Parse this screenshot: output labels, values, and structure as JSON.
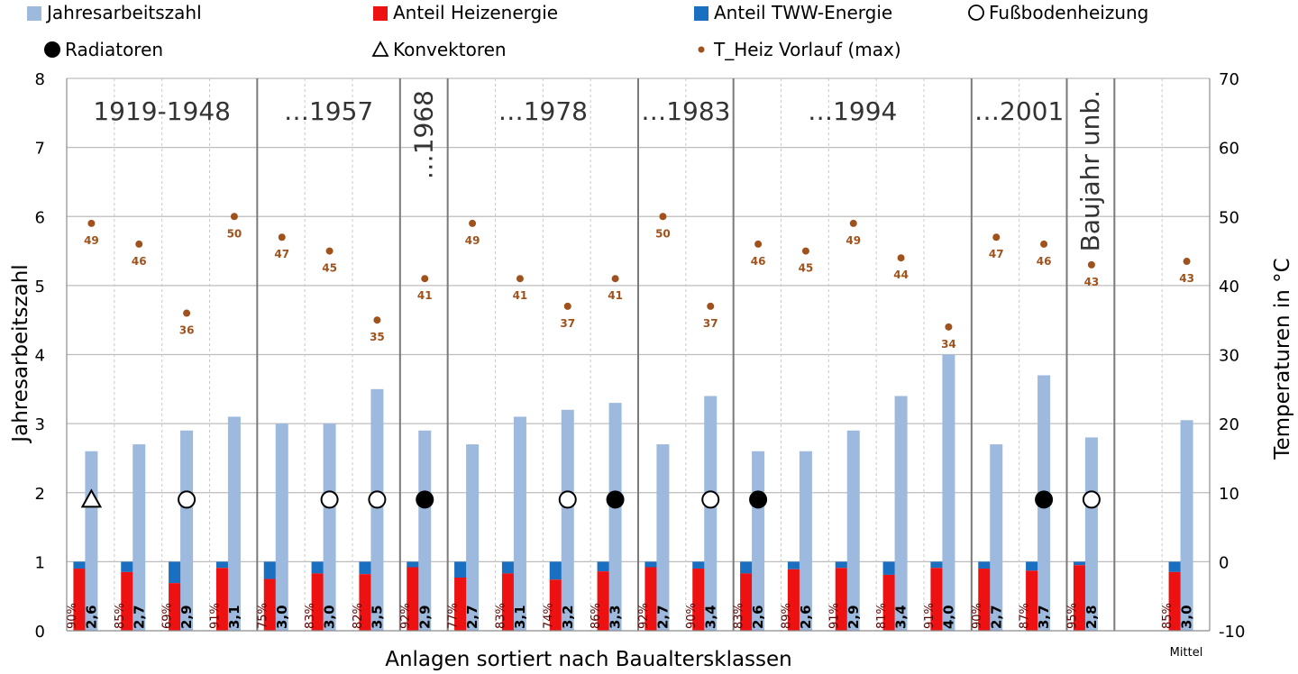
{
  "chart_data": {
    "type": "bar",
    "xlabel": "Anlagen sortiert nach Baualtersklassen",
    "ylabel": "Jahresarbeitszahl",
    "y2label": "Temperaturen in °C",
    "ylim": [
      0,
      8
    ],
    "y2lim": [
      -10,
      70
    ],
    "yticks": [
      "0",
      "1",
      "2",
      "3",
      "4",
      "5",
      "6",
      "7",
      "8"
    ],
    "y2ticks": [
      "-10",
      "0",
      "10",
      "20",
      "30",
      "40",
      "50",
      "60",
      "70"
    ],
    "legend": [
      {
        "key": "jaz",
        "label": "Jahresarbeitszahl",
        "color": "#9db9dd",
        "marker": "square"
      },
      {
        "key": "heiz",
        "label": "Anteil Heizenergie",
        "color": "#ee1111",
        "marker": "square"
      },
      {
        "key": "tww",
        "label": "Anteil TWW-Energie",
        "color": "#1a6fc0",
        "marker": "square"
      },
      {
        "key": "fbh",
        "label": "Fußbodenheizung",
        "color": "#000000",
        "marker": "circle-open"
      },
      {
        "key": "rad",
        "label": "Radiatoren",
        "color": "#000000",
        "marker": "circle-filled"
      },
      {
        "key": "konv",
        "label": "Konvektoren",
        "color": "#000000",
        "marker": "triangle-open"
      },
      {
        "key": "tvl",
        "label": "T_Heiz Vorlauf (max)",
        "color": "#a0521c",
        "marker": "dot"
      }
    ],
    "periods": [
      {
        "label": "1919-1948",
        "start": 0,
        "end": 3,
        "vertical": false
      },
      {
        "label": "…1957",
        "start": 4,
        "end": 6,
        "vertical": false
      },
      {
        "label": "…1968",
        "start": 7,
        "end": 7,
        "vertical": true
      },
      {
        "label": "…1978",
        "start": 8,
        "end": 11,
        "vertical": false
      },
      {
        "label": "…1983",
        "start": 12,
        "end": 13,
        "vertical": false
      },
      {
        "label": "…1994",
        "start": 14,
        "end": 18,
        "vertical": false
      },
      {
        "label": "…2001",
        "start": 19,
        "end": 20,
        "vertical": false
      },
      {
        "label": "Baujahr unb.",
        "start": 21,
        "end": 21,
        "vertical": true
      }
    ],
    "mittel_label": "Mittel",
    "systems": [
      {
        "jaz": 2.6,
        "jaz_label": "2,6",
        "heiz": 0.9,
        "heiz_label": "90%",
        "temp": 49,
        "temp_label": "49",
        "marker": "konv"
      },
      {
        "jaz": 2.7,
        "jaz_label": "2,7",
        "heiz": 0.85,
        "heiz_label": "85%",
        "temp": 46,
        "temp_label": "46",
        "marker": ""
      },
      {
        "jaz": 2.9,
        "jaz_label": "2,9",
        "heiz": 0.69,
        "heiz_label": "69%",
        "temp": 36,
        "temp_label": "36",
        "marker": "fbh"
      },
      {
        "jaz": 3.1,
        "jaz_label": "3,1",
        "heiz": 0.91,
        "heiz_label": "91%",
        "temp": 50,
        "temp_label": "50",
        "marker": ""
      },
      {
        "jaz": 3.0,
        "jaz_label": "3,0",
        "heiz": 0.75,
        "heiz_label": "75%",
        "temp": 47,
        "temp_label": "47",
        "marker": ""
      },
      {
        "jaz": 3.0,
        "jaz_label": "3,0",
        "heiz": 0.83,
        "heiz_label": "83%",
        "temp": 45,
        "temp_label": "45",
        "marker": "fbh"
      },
      {
        "jaz": 3.5,
        "jaz_label": "3,5",
        "heiz": 0.82,
        "heiz_label": "82%",
        "temp": 35,
        "temp_label": "35",
        "marker": "fbh"
      },
      {
        "jaz": 2.9,
        "jaz_label": "2,9",
        "heiz": 0.92,
        "heiz_label": "92%",
        "temp": 41,
        "temp_label": "41",
        "marker": "rad"
      },
      {
        "jaz": 2.7,
        "jaz_label": "2,7",
        "heiz": 0.77,
        "heiz_label": "77%",
        "temp": 49,
        "temp_label": "49",
        "marker": ""
      },
      {
        "jaz": 3.1,
        "jaz_label": "3,1",
        "heiz": 0.83,
        "heiz_label": "83%",
        "temp": 41,
        "temp_label": "41",
        "marker": ""
      },
      {
        "jaz": 3.2,
        "jaz_label": "3,2",
        "heiz": 0.74,
        "heiz_label": "74%",
        "temp": 37,
        "temp_label": "37",
        "marker": "fbh"
      },
      {
        "jaz": 3.3,
        "jaz_label": "3,3",
        "heiz": 0.86,
        "heiz_label": "86%",
        "temp": 41,
        "temp_label": "41",
        "marker": "rad"
      },
      {
        "jaz": 2.7,
        "jaz_label": "2,7",
        "heiz": 0.92,
        "heiz_label": "92%",
        "temp": 50,
        "temp_label": "50",
        "marker": ""
      },
      {
        "jaz": 3.4,
        "jaz_label": "3,4",
        "heiz": 0.9,
        "heiz_label": "90%",
        "temp": 37,
        "temp_label": "37",
        "marker": "fbh"
      },
      {
        "jaz": 2.6,
        "jaz_label": "2,6",
        "heiz": 0.83,
        "heiz_label": "83%",
        "temp": 46,
        "temp_label": "46",
        "marker": "rad"
      },
      {
        "jaz": 2.6,
        "jaz_label": "2,6",
        "heiz": 0.89,
        "heiz_label": "89%",
        "temp": 45,
        "temp_label": "45",
        "marker": ""
      },
      {
        "jaz": 2.9,
        "jaz_label": "2,9",
        "heiz": 0.91,
        "heiz_label": "91%",
        "temp": 49,
        "temp_label": "49",
        "marker": ""
      },
      {
        "jaz": 3.4,
        "jaz_label": "3,4",
        "heiz": 0.81,
        "heiz_label": "81%",
        "temp": 44,
        "temp_label": "44",
        "marker": ""
      },
      {
        "jaz": 4.0,
        "jaz_label": "4,0",
        "heiz": 0.91,
        "heiz_label": "91%",
        "temp": 34,
        "temp_label": "34",
        "marker": ""
      },
      {
        "jaz": 2.7,
        "jaz_label": "2,7",
        "heiz": 0.9,
        "heiz_label": "90%",
        "temp": 47,
        "temp_label": "47",
        "marker": ""
      },
      {
        "jaz": 3.7,
        "jaz_label": "3,7",
        "heiz": 0.87,
        "heiz_label": "87%",
        "temp": 46,
        "temp_label": "46",
        "marker": "rad"
      },
      {
        "jaz": 2.8,
        "jaz_label": "2,8",
        "heiz": 0.95,
        "heiz_label": "95%",
        "temp": 43,
        "temp_label": "43",
        "marker": "fbh"
      },
      {
        "jaz": null,
        "jaz_label": "",
        "heiz": null,
        "heiz_label": "",
        "temp": null,
        "temp_label": "",
        "marker": ""
      },
      {
        "jaz": 3.05,
        "jaz_label": "3,0",
        "heiz": 0.85,
        "heiz_label": "85%",
        "temp": 43.5,
        "temp_label": "43",
        "marker": ""
      }
    ]
  }
}
